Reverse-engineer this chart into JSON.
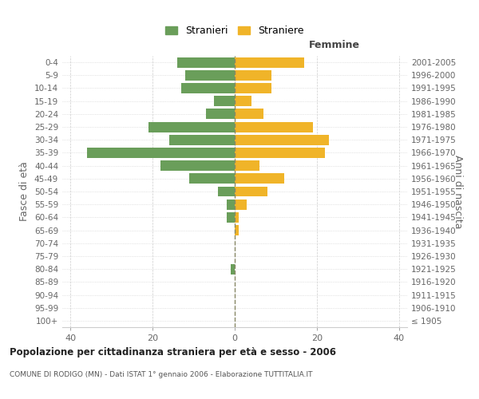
{
  "age_groups": [
    "100+",
    "95-99",
    "90-94",
    "85-89",
    "80-84",
    "75-79",
    "70-74",
    "65-69",
    "60-64",
    "55-59",
    "50-54",
    "45-49",
    "40-44",
    "35-39",
    "30-34",
    "25-29",
    "20-24",
    "15-19",
    "10-14",
    "5-9",
    "0-4"
  ],
  "birth_years": [
    "≤ 1905",
    "1906-1910",
    "1911-1915",
    "1916-1920",
    "1921-1925",
    "1926-1930",
    "1931-1935",
    "1936-1940",
    "1941-1945",
    "1946-1950",
    "1951-1955",
    "1956-1960",
    "1961-1965",
    "1966-1970",
    "1971-1975",
    "1976-1980",
    "1981-1985",
    "1986-1990",
    "1991-1995",
    "1996-2000",
    "2001-2005"
  ],
  "males": [
    0,
    0,
    0,
    0,
    1,
    0,
    0,
    0,
    2,
    2,
    4,
    11,
    18,
    36,
    16,
    21,
    7,
    5,
    13,
    12,
    14
  ],
  "females": [
    0,
    0,
    0,
    0,
    0,
    0,
    0,
    1,
    1,
    3,
    8,
    12,
    6,
    22,
    23,
    19,
    7,
    4,
    9,
    9,
    17
  ],
  "male_color": "#6a9e5a",
  "female_color": "#f0b429",
  "grid_color": "#cccccc",
  "bar_height": 0.8,
  "xlim": [
    -42,
    42
  ],
  "xticks": [
    -40,
    -20,
    0,
    20,
    40
  ],
  "xticklabels": [
    "40",
    "20",
    "0",
    "20",
    "40"
  ],
  "title": "Popolazione per cittadinanza straniera per età e sesso - 2006",
  "subtitle": "COMUNE DI RODIGO (MN) - Dati ISTAT 1° gennaio 2006 - Elaborazione TUTTITALIA.IT",
  "ylabel_left": "Fasce di età",
  "ylabel_right": "Anni di nascita",
  "header_right": "Femmine",
  "legend_stranieri": "Stranieri",
  "legend_straniere": "Straniere",
  "background_color": "#ffffff",
  "dashed_line_color": "#888866"
}
